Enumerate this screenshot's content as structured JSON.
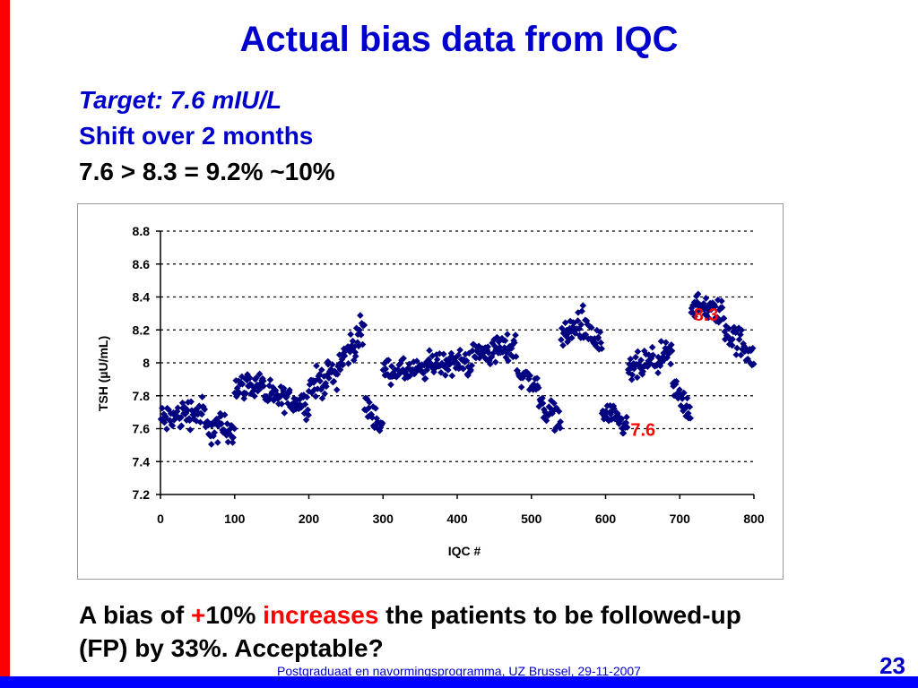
{
  "slide": {
    "title": "Actual bias data from IQC",
    "subtitle_1": "Target: 7.6 mIU/L",
    "subtitle_2": "Shift over 2 months",
    "subtitle_3": "7.6 > 8.3 = 9.2% ~10%",
    "bottom_part1": "A bias of ",
    "bottom_plus": "+",
    "bottom_part2": "10% ",
    "bottom_increases": "increases",
    "bottom_part3": " the patients to be followed-up (FP) by 33%. Acceptable?",
    "footer": "Postgraduaat en navormingsprogramma, UZ Brussel, 29-11-2007",
    "page_number": "23",
    "colors": {
      "title_blue": "#0000cc",
      "accent_red": "#ff0000",
      "bar_blue": "#0000ff",
      "marker_navy": "#000080"
    }
  },
  "chart_data": {
    "type": "scatter",
    "xlabel": "IQC #",
    "ylabel": "TSH (µU/mL)",
    "xlim": [
      0,
      800
    ],
    "ylim": [
      7.2,
      8.8
    ],
    "x_ticks": [
      "0",
      "100",
      "200",
      "300",
      "400",
      "500",
      "600",
      "700",
      "800"
    ],
    "y_ticks": [
      "7.2",
      "7.4",
      "7.6",
      "7.8",
      "8",
      "8.2",
      "8.4",
      "8.6",
      "8.8"
    ],
    "grid": "horizontal dashed",
    "marker": "diamond",
    "annotations": [
      {
        "text": "8.3",
        "x": 750,
        "y": 8.3
      },
      {
        "text": "7.6",
        "x": 665,
        "y": 7.6
      }
    ],
    "trend_segments": [
      {
        "x_start": 0,
        "x_end": 30,
        "y_start": 7.65,
        "y_end": 7.68,
        "spread": 0.1
      },
      {
        "x_start": 30,
        "x_end": 60,
        "y_start": 7.7,
        "y_end": 7.7,
        "spread": 0.1
      },
      {
        "x_start": 60,
        "x_end": 100,
        "y_start": 7.6,
        "y_end": 7.6,
        "spread": 0.1
      },
      {
        "x_start": 100,
        "x_end": 140,
        "y_start": 7.85,
        "y_end": 7.88,
        "spread": 0.08
      },
      {
        "x_start": 140,
        "x_end": 200,
        "y_start": 7.8,
        "y_end": 7.75,
        "spread": 0.08
      },
      {
        "x_start": 200,
        "x_end": 240,
        "y_start": 7.85,
        "y_end": 7.95,
        "spread": 0.1
      },
      {
        "x_start": 240,
        "x_end": 275,
        "y_start": 8.0,
        "y_end": 8.2,
        "spread": 0.1
      },
      {
        "x_start": 275,
        "x_end": 300,
        "y_start": 7.75,
        "y_end": 7.6,
        "spread": 0.08
      },
      {
        "x_start": 300,
        "x_end": 360,
        "y_start": 7.95,
        "y_end": 7.95,
        "spread": 0.07
      },
      {
        "x_start": 360,
        "x_end": 420,
        "y_start": 8.0,
        "y_end": 8.0,
        "spread": 0.08
      },
      {
        "x_start": 420,
        "x_end": 480,
        "y_start": 8.05,
        "y_end": 8.1,
        "spread": 0.09
      },
      {
        "x_start": 480,
        "x_end": 510,
        "y_start": 7.95,
        "y_end": 7.85,
        "spread": 0.08
      },
      {
        "x_start": 510,
        "x_end": 540,
        "y_start": 7.75,
        "y_end": 7.65,
        "spread": 0.08
      },
      {
        "x_start": 540,
        "x_end": 570,
        "y_start": 8.15,
        "y_end": 8.25,
        "spread": 0.1
      },
      {
        "x_start": 570,
        "x_end": 595,
        "y_start": 8.2,
        "y_end": 8.1,
        "spread": 0.1
      },
      {
        "x_start": 595,
        "x_end": 630,
        "y_start": 7.7,
        "y_end": 7.6,
        "spread": 0.08
      },
      {
        "x_start": 630,
        "x_end": 690,
        "y_start": 7.95,
        "y_end": 8.05,
        "spread": 0.09
      },
      {
        "x_start": 690,
        "x_end": 715,
        "y_start": 7.85,
        "y_end": 7.7,
        "spread": 0.09
      },
      {
        "x_start": 715,
        "x_end": 760,
        "y_start": 8.35,
        "y_end": 8.3,
        "spread": 0.08
      },
      {
        "x_start": 760,
        "x_end": 800,
        "y_start": 8.2,
        "y_end": 8.05,
        "spread": 0.1
      }
    ]
  }
}
